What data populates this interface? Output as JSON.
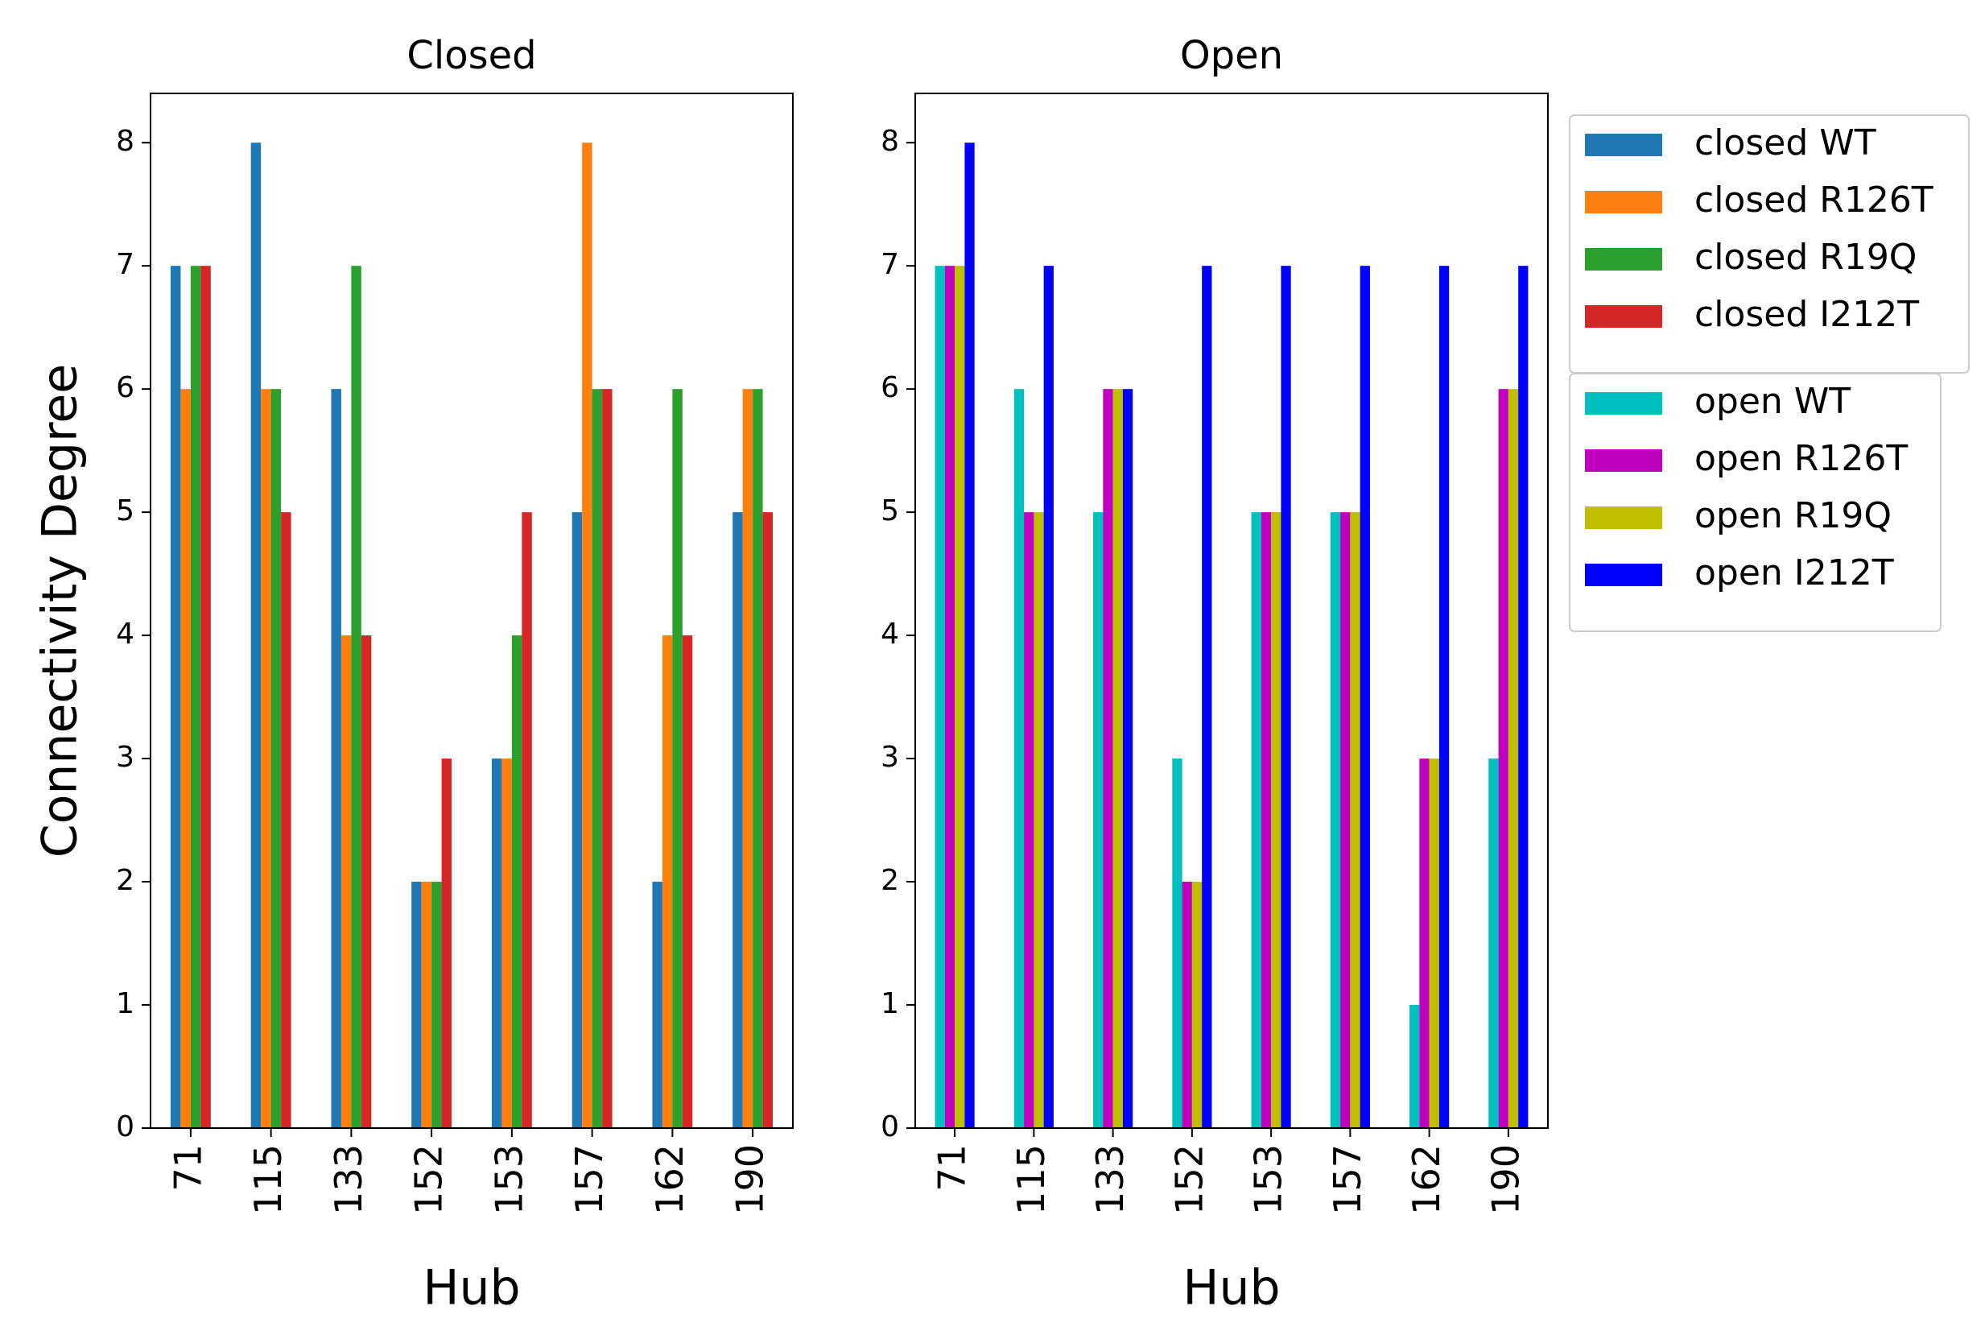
{
  "chart_data": [
    {
      "type": "bar",
      "title": "Closed",
      "xlabel": "Hub",
      "ylabel": "Connectivity Degree",
      "categories": [
        "71",
        "115",
        "133",
        "152",
        "153",
        "157",
        "162",
        "190"
      ],
      "series": [
        {
          "name": "closed WT",
          "color": "#1f77b4",
          "values": [
            7,
            8,
            6,
            2,
            3,
            5,
            2,
            5
          ]
        },
        {
          "name": "closed R126T",
          "color": "#ff7f0e",
          "values": [
            6,
            6,
            4,
            2,
            3,
            8,
            4,
            6
          ]
        },
        {
          "name": "closed R19Q",
          "color": "#2ca02c",
          "values": [
            7,
            6,
            7,
            2,
            4,
            6,
            6,
            6
          ]
        },
        {
          "name": "closed I212T",
          "color": "#d62728",
          "values": [
            7,
            5,
            4,
            3,
            5,
            6,
            4,
            5
          ]
        }
      ],
      "ylim": [
        0,
        8.4
      ],
      "yticks": [
        0,
        1,
        2,
        3,
        4,
        5,
        6,
        7,
        8
      ],
      "legend": "outside upper right"
    },
    {
      "type": "bar",
      "title": "Open",
      "xlabel": "Hub",
      "categories": [
        "71",
        "115",
        "133",
        "152",
        "153",
        "157",
        "162",
        "190"
      ],
      "series": [
        {
          "name": "open WT",
          "color": "#00bfbf",
          "values": [
            7,
            6,
            5,
            3,
            5,
            5,
            1,
            3
          ]
        },
        {
          "name": "open R126T",
          "color": "#bf00bf",
          "values": [
            7,
            5,
            6,
            2,
            5,
            5,
            3,
            6
          ]
        },
        {
          "name": "open R19Q",
          "color": "#bfbf00",
          "values": [
            7,
            5,
            6,
            2,
            5,
            5,
            3,
            6
          ]
        },
        {
          "name": "open I212T",
          "color": "#0000ff",
          "values": [
            8,
            7,
            6,
            7,
            7,
            7,
            7,
            7
          ]
        }
      ],
      "ylim": [
        0,
        8.4
      ],
      "yticks": [
        0,
        1,
        2,
        3,
        4,
        5,
        6,
        7,
        8
      ],
      "legend": "outside upper right"
    }
  ]
}
